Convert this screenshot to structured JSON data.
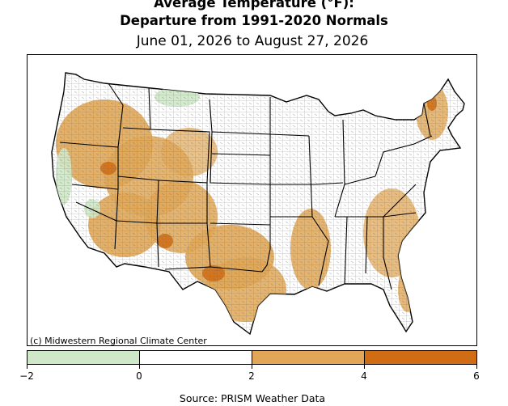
{
  "header": {
    "title_line1": "Average Temperature (°F):",
    "title_line2": "Departure from 1991-2020 Normals",
    "date_range": "June 01, 2026 to August 27, 2026"
  },
  "map": {
    "credit": "(c) Midwestern Regional Climate Center",
    "border_color": "#000000",
    "state_line_color": "#000000",
    "county_line_color": "#555555"
  },
  "legend": {
    "bins": [
      {
        "from": -2,
        "to": 0,
        "color": "#cfe8c8"
      },
      {
        "from": 0,
        "to": 2,
        "color": "#ffffff"
      },
      {
        "from": 2,
        "to": 4,
        "color": "#e1a756"
      },
      {
        "from": 4,
        "to": 6,
        "color": "#cf6c14"
      }
    ],
    "tick_labels": [
      "−2",
      "0",
      "2",
      "4",
      "6"
    ]
  },
  "footer": {
    "source": "Source: PRISM Weather Data"
  }
}
